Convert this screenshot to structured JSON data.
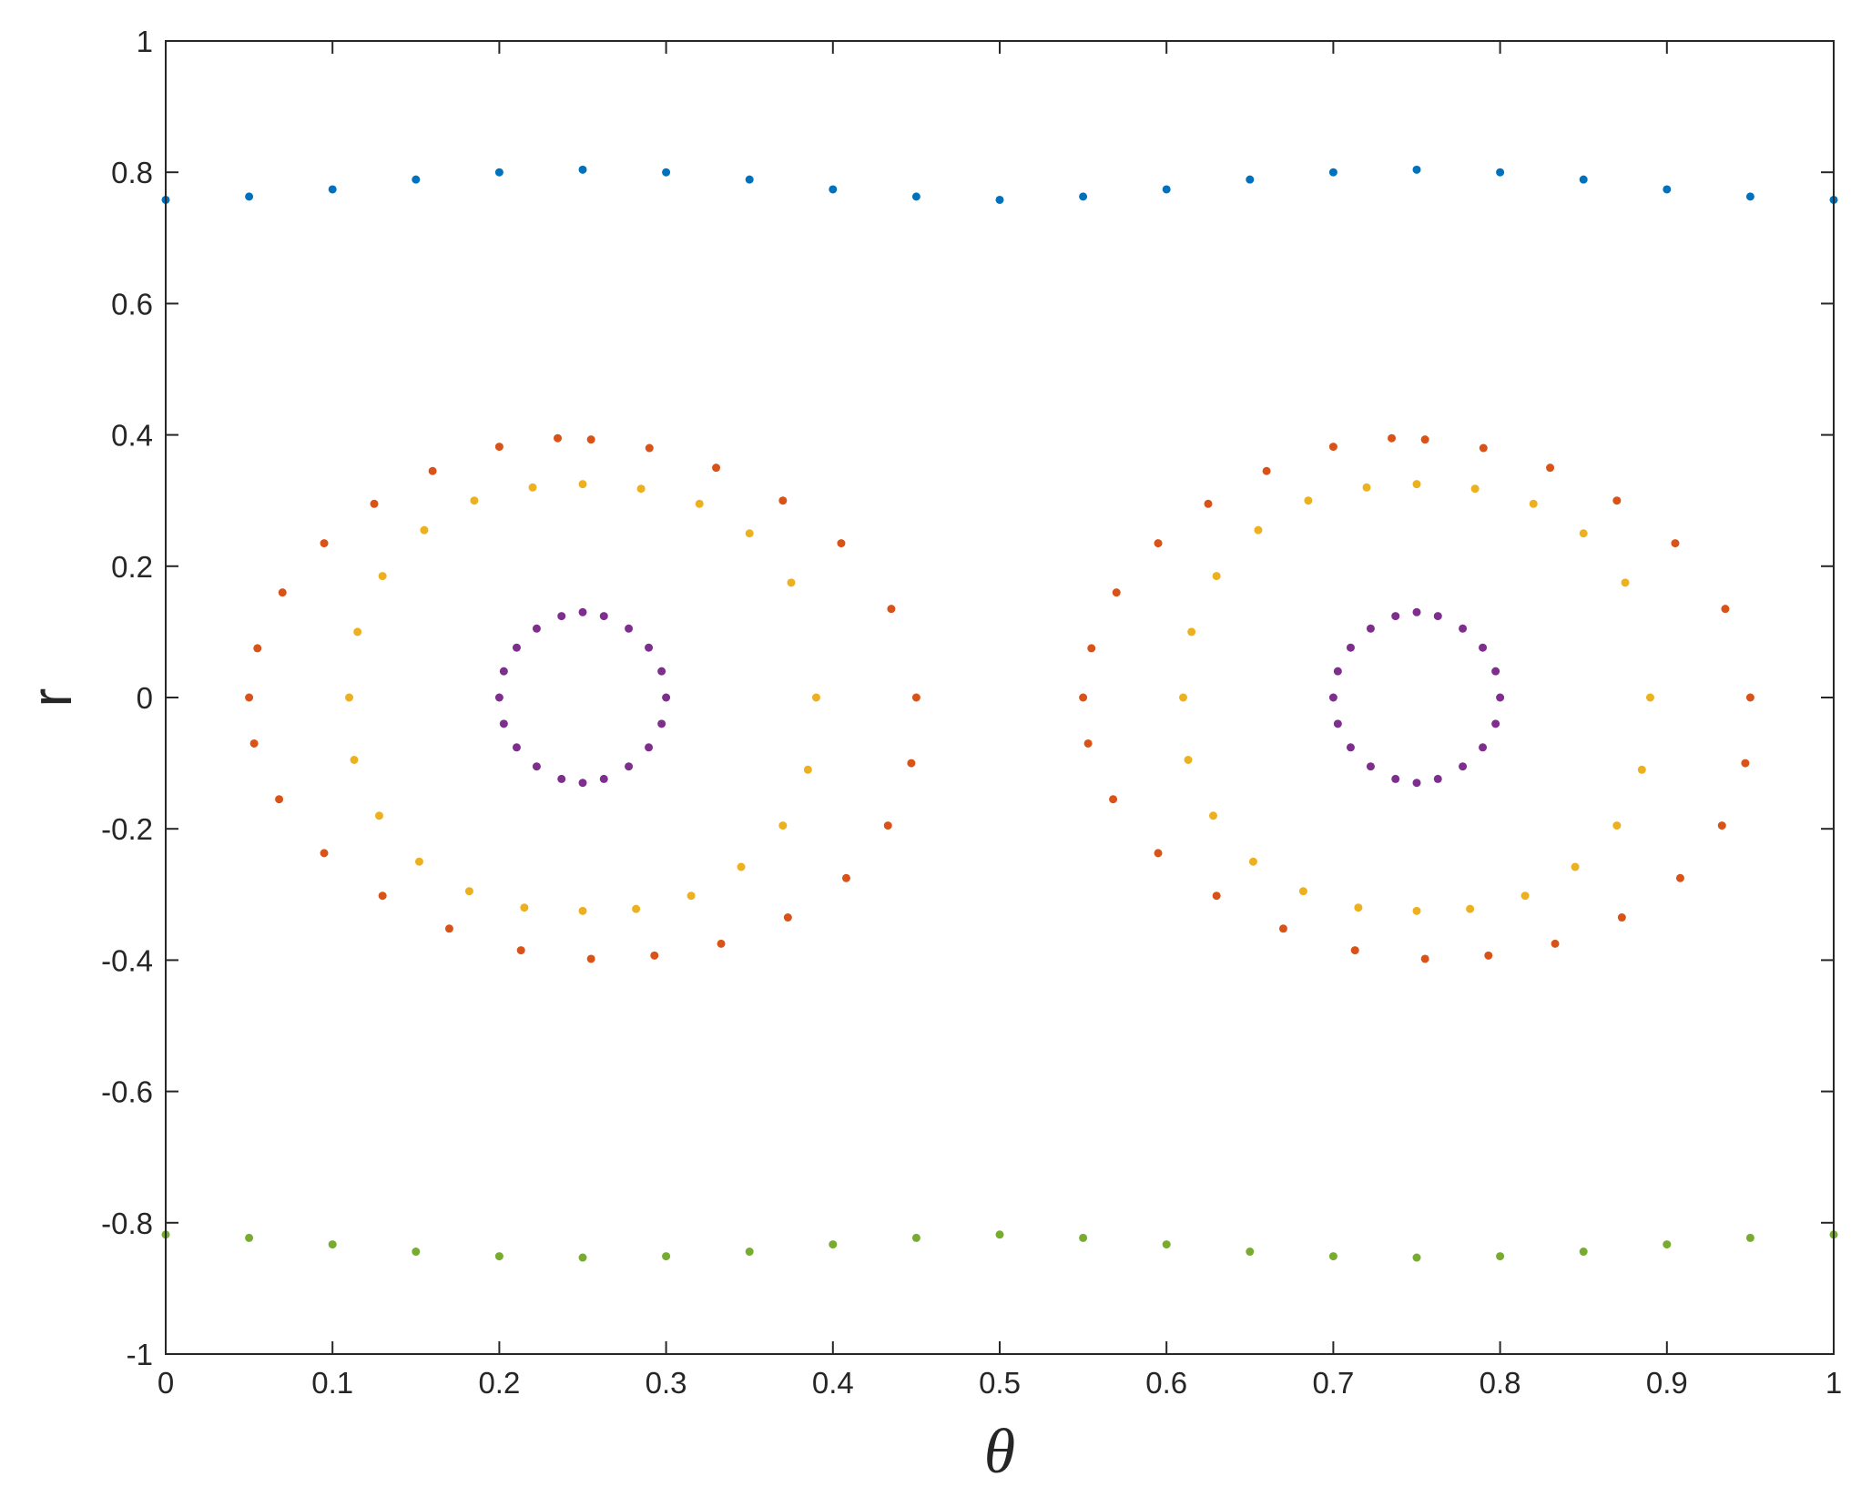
{
  "chart_data": {
    "type": "scatter",
    "title": "",
    "xlabel": "θ",
    "ylabel": "r",
    "xlim": [
      0,
      1
    ],
    "ylim": [
      -1,
      1
    ],
    "grid": false,
    "legend": "none",
    "xticks": [
      0,
      0.1,
      0.2,
      0.3,
      0.4,
      0.5,
      0.6,
      0.7,
      0.8,
      0.9,
      1
    ],
    "yticks": [
      -1,
      -0.8,
      -0.6,
      -0.4,
      -0.2,
      0,
      0.2,
      0.4,
      0.6,
      0.8,
      1
    ],
    "xtick_labels": [
      "0",
      "0.1",
      "0.2",
      "0.3",
      "0.4",
      "0.5",
      "0.6",
      "0.7",
      "0.8",
      "0.9",
      "1"
    ],
    "ytick_labels": [
      "-1",
      "-0.8",
      "-0.6",
      "-0.4",
      "-0.2",
      "0",
      "0.2",
      "0.4",
      "0.6",
      "0.8",
      "1"
    ],
    "series": [
      {
        "color": "#0072BD",
        "x": [
          0,
          0.05,
          0.1,
          0.15,
          0.2,
          0.25,
          0.3,
          0.35,
          0.4,
          0.45,
          0.5,
          0.55,
          0.6,
          0.65,
          0.7,
          0.75,
          0.8,
          0.85,
          0.9,
          0.95,
          1
        ],
        "y": [
          0.758,
          0.763,
          0.774,
          0.789,
          0.8,
          0.804,
          0.8,
          0.789,
          0.774,
          0.763,
          0.758,
          0.763,
          0.774,
          0.789,
          0.8,
          0.804,
          0.8,
          0.789,
          0.774,
          0.763,
          0.758
        ]
      },
      {
        "color": "#77AC30",
        "x": [
          0,
          0.05,
          0.1,
          0.15,
          0.2,
          0.25,
          0.3,
          0.35,
          0.4,
          0.45,
          0.5,
          0.55,
          0.6,
          0.65,
          0.7,
          0.75,
          0.8,
          0.85,
          0.9,
          0.95,
          1
        ],
        "y": [
          -0.818,
          -0.823,
          -0.833,
          -0.844,
          -0.851,
          -0.853,
          -0.851,
          -0.844,
          -0.833,
          -0.823,
          -0.818,
          -0.823,
          -0.833,
          -0.844,
          -0.851,
          -0.853,
          -0.851,
          -0.844,
          -0.833,
          -0.823,
          -0.818
        ]
      },
      {
        "color": "#D95319",
        "x": [
          0.05,
          0.055,
          0.07,
          0.095,
          0.125,
          0.16,
          0.2,
          0.235,
          0.255,
          0.29,
          0.33,
          0.37,
          0.405,
          0.435,
          0.45,
          0.447,
          0.433,
          0.408,
          0.373,
          0.333,
          0.293,
          0.255,
          0.213,
          0.17,
          0.13,
          0.095,
          0.068,
          0.053,
          0.55,
          0.555,
          0.57,
          0.595,
          0.625,
          0.66,
          0.7,
          0.735,
          0.755,
          0.79,
          0.83,
          0.87,
          0.905,
          0.935,
          0.95,
          0.947,
          0.933,
          0.908,
          0.873,
          0.833,
          0.793,
          0.755,
          0.713,
          0.67,
          0.63,
          0.595,
          0.568,
          0.553
        ],
        "y": [
          0.0,
          0.075,
          0.16,
          0.235,
          0.295,
          0.345,
          0.382,
          0.395,
          0.393,
          0.38,
          0.35,
          0.3,
          0.235,
          0.135,
          0.0,
          -0.1,
          -0.195,
          -0.275,
          -0.335,
          -0.375,
          -0.393,
          -0.398,
          -0.385,
          -0.352,
          -0.302,
          -0.237,
          -0.155,
          -0.07,
          0.0,
          0.075,
          0.16,
          0.235,
          0.295,
          0.345,
          0.382,
          0.395,
          0.393,
          0.38,
          0.35,
          0.3,
          0.235,
          0.135,
          0.0,
          -0.1,
          -0.195,
          -0.275,
          -0.335,
          -0.375,
          -0.393,
          -0.398,
          -0.385,
          -0.352,
          -0.302,
          -0.237,
          -0.155,
          -0.07
        ]
      },
      {
        "color": "#EDB120",
        "x": [
          0.11,
          0.115,
          0.13,
          0.155,
          0.185,
          0.22,
          0.25,
          0.285,
          0.32,
          0.35,
          0.375,
          0.39,
          0.385,
          0.37,
          0.345,
          0.315,
          0.282,
          0.25,
          0.215,
          0.182,
          0.152,
          0.128,
          0.113,
          0.61,
          0.615,
          0.63,
          0.655,
          0.685,
          0.72,
          0.75,
          0.785,
          0.82,
          0.85,
          0.875,
          0.89,
          0.885,
          0.87,
          0.845,
          0.815,
          0.782,
          0.75,
          0.715,
          0.682,
          0.652,
          0.628,
          0.613
        ],
        "y": [
          0.0,
          0.1,
          0.185,
          0.255,
          0.3,
          0.32,
          0.325,
          0.318,
          0.295,
          0.25,
          0.175,
          0.0,
          -0.11,
          -0.195,
          -0.258,
          -0.302,
          -0.322,
          -0.325,
          -0.32,
          -0.295,
          -0.25,
          -0.18,
          -0.095,
          0.0,
          0.1,
          0.185,
          0.255,
          0.3,
          0.32,
          0.325,
          0.318,
          0.295,
          0.25,
          0.175,
          0.0,
          -0.11,
          -0.195,
          -0.258,
          -0.302,
          -0.322,
          -0.325,
          -0.32,
          -0.295,
          -0.25,
          -0.18,
          -0.095
        ]
      },
      {
        "color": "#7E2F8E",
        "x": [
          0.3,
          0.2973,
          0.2896,
          0.2776,
          0.2627,
          0.25,
          0.2373,
          0.2224,
          0.2104,
          0.2027,
          0.2,
          0.2027,
          0.2104,
          0.2224,
          0.2373,
          0.25,
          0.2627,
          0.2776,
          0.2896,
          0.2973,
          0.8,
          0.7973,
          0.7896,
          0.7776,
          0.7627,
          0.75,
          0.7373,
          0.7224,
          0.7104,
          0.7027,
          0.7,
          0.7027,
          0.7104,
          0.7224,
          0.7373,
          0.75,
          0.7627,
          0.7776,
          0.7896,
          0.7973
        ],
        "y": [
          0.0,
          0.04,
          0.076,
          0.105,
          0.124,
          0.13,
          0.124,
          0.105,
          0.076,
          0.04,
          0.0,
          -0.04,
          -0.076,
          -0.105,
          -0.124,
          -0.13,
          -0.124,
          -0.105,
          -0.076,
          -0.04,
          0.0,
          0.04,
          0.076,
          0.105,
          0.124,
          0.13,
          0.124,
          0.105,
          0.076,
          0.04,
          0.0,
          -0.04,
          -0.076,
          -0.105,
          -0.124,
          -0.13,
          -0.124,
          -0.105,
          -0.076,
          -0.04
        ]
      }
    ]
  }
}
